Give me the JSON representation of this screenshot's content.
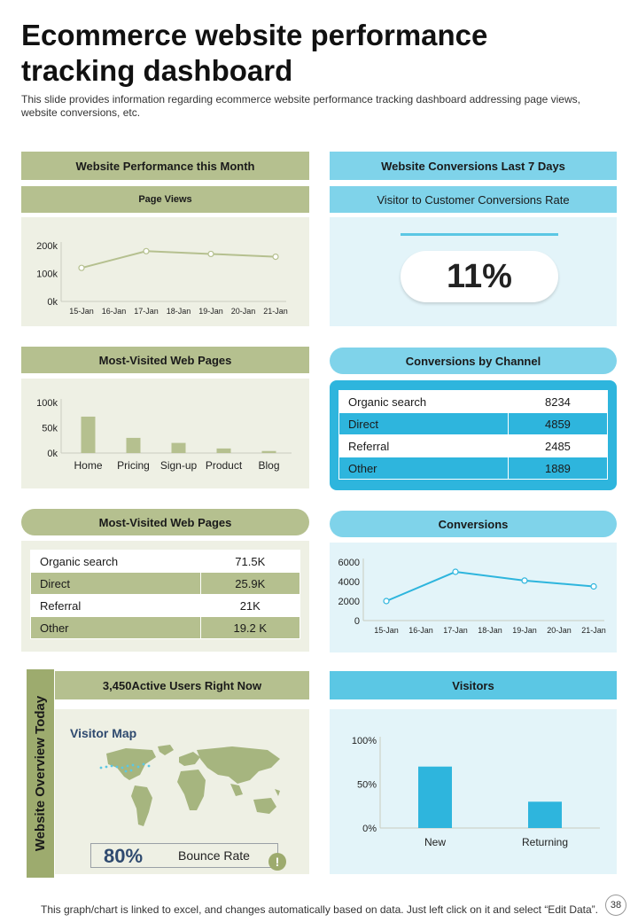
{
  "title": "Ecommerce website performance tracking dashboard",
  "subtitle": "This slide provides information regarding ecommerce website performance tracking dashboard addressing page views, website conversions, etc.",
  "left": {
    "performance_header": "Website Performance this Month",
    "page_views_header": "Page Views",
    "most_visited_header_1": "Most-Visited  Web Pages",
    "most_visited_header_2": "Most-Visited  Web Pages",
    "active_users_header": "3,450Active Users  Right Now",
    "side_label": "Website Overview Today",
    "visitor_map_title": "Visitor Map",
    "bounce_value": "80%",
    "bounce_label": "Bounce Rate",
    "alert_icon_glyph": "!",
    "table": [
      {
        "label": "Organic  search",
        "value": "71.5K"
      },
      {
        "label": "Direct",
        "value": "25.9K"
      },
      {
        "label": "Referral",
        "value": "21K"
      },
      {
        "label": "Other",
        "value": "19.2 K"
      }
    ]
  },
  "right": {
    "conversions_header": "Website Conversions  Last 7 Days",
    "rate_header": "Visitor to Customer  Conversions  Rate",
    "rate_value": "11%",
    "channel_header": "Conversions  by Channel",
    "conversions_chart_header": "Conversions",
    "visitors_header": "Visitors",
    "channel_table": [
      {
        "label": "Organic search",
        "value": "8234"
      },
      {
        "label": "Direct",
        "value": "4859"
      },
      {
        "label": "Referral",
        "value": "2485"
      },
      {
        "label": "Other",
        "value": "1889"
      }
    ]
  },
  "footer": {
    "note": "This graph/chart is linked to excel,  and changes automatically based on data. Just left click on it and select “Edit Data”.",
    "page_number": "38"
  },
  "colors": {
    "green_header": "#b5c08f",
    "green_panel": "#eef0e4",
    "blue_header": "#7fd3ea",
    "blue_strong": "#2eb5dd",
    "blue_panel": "#e3f4f9"
  },
  "chart_data": [
    {
      "id": "page_views",
      "type": "line",
      "title": "Page Views",
      "categories": [
        "15-Jan",
        "16-Jan",
        "17-Jan",
        "18-Jan",
        "19-Jan",
        "20-Jan",
        "21-Jan"
      ],
      "series": [
        {
          "name": "Page Views",
          "x": [
            "15-Jan",
            "17-Jan",
            "19-Jan",
            "21-Jan"
          ],
          "values": [
            120000,
            180000,
            170000,
            160000
          ]
        }
      ],
      "yticks": [
        "0k",
        "100k",
        "200k"
      ],
      "ylim": [
        0,
        200000
      ]
    },
    {
      "id": "most_visited",
      "type": "bar",
      "title": "Most-Visited  Web Pages",
      "categories": [
        "Home",
        "Pricing",
        "Sign-up",
        "Product",
        "Blog"
      ],
      "values": [
        72000,
        30000,
        20000,
        9000,
        4000
      ],
      "yticks": [
        "0k",
        "50k",
        "100k"
      ],
      "ylim": [
        0,
        100000
      ]
    },
    {
      "id": "conversions",
      "type": "line",
      "title": "Conversions",
      "categories": [
        "15-Jan",
        "16-Jan",
        "17-Jan",
        "18-Jan",
        "19-Jan",
        "20-Jan",
        "21-Jan"
      ],
      "series": [
        {
          "name": "Conversions",
          "x": [
            "15-Jan",
            "17-Jan",
            "19-Jan",
            "21-Jan"
          ],
          "values": [
            2000,
            5000,
            4100,
            3500
          ]
        }
      ],
      "yticks": [
        "0",
        "2000",
        "4000",
        "6000"
      ],
      "ylim": [
        0,
        6000
      ]
    },
    {
      "id": "visitors",
      "type": "bar",
      "title": "Visitors",
      "categories": [
        "New",
        "Returning"
      ],
      "values": [
        70,
        30
      ],
      "yticks": [
        "0%",
        "50%",
        "100%"
      ],
      "ylim": [
        0,
        100
      ]
    }
  ]
}
